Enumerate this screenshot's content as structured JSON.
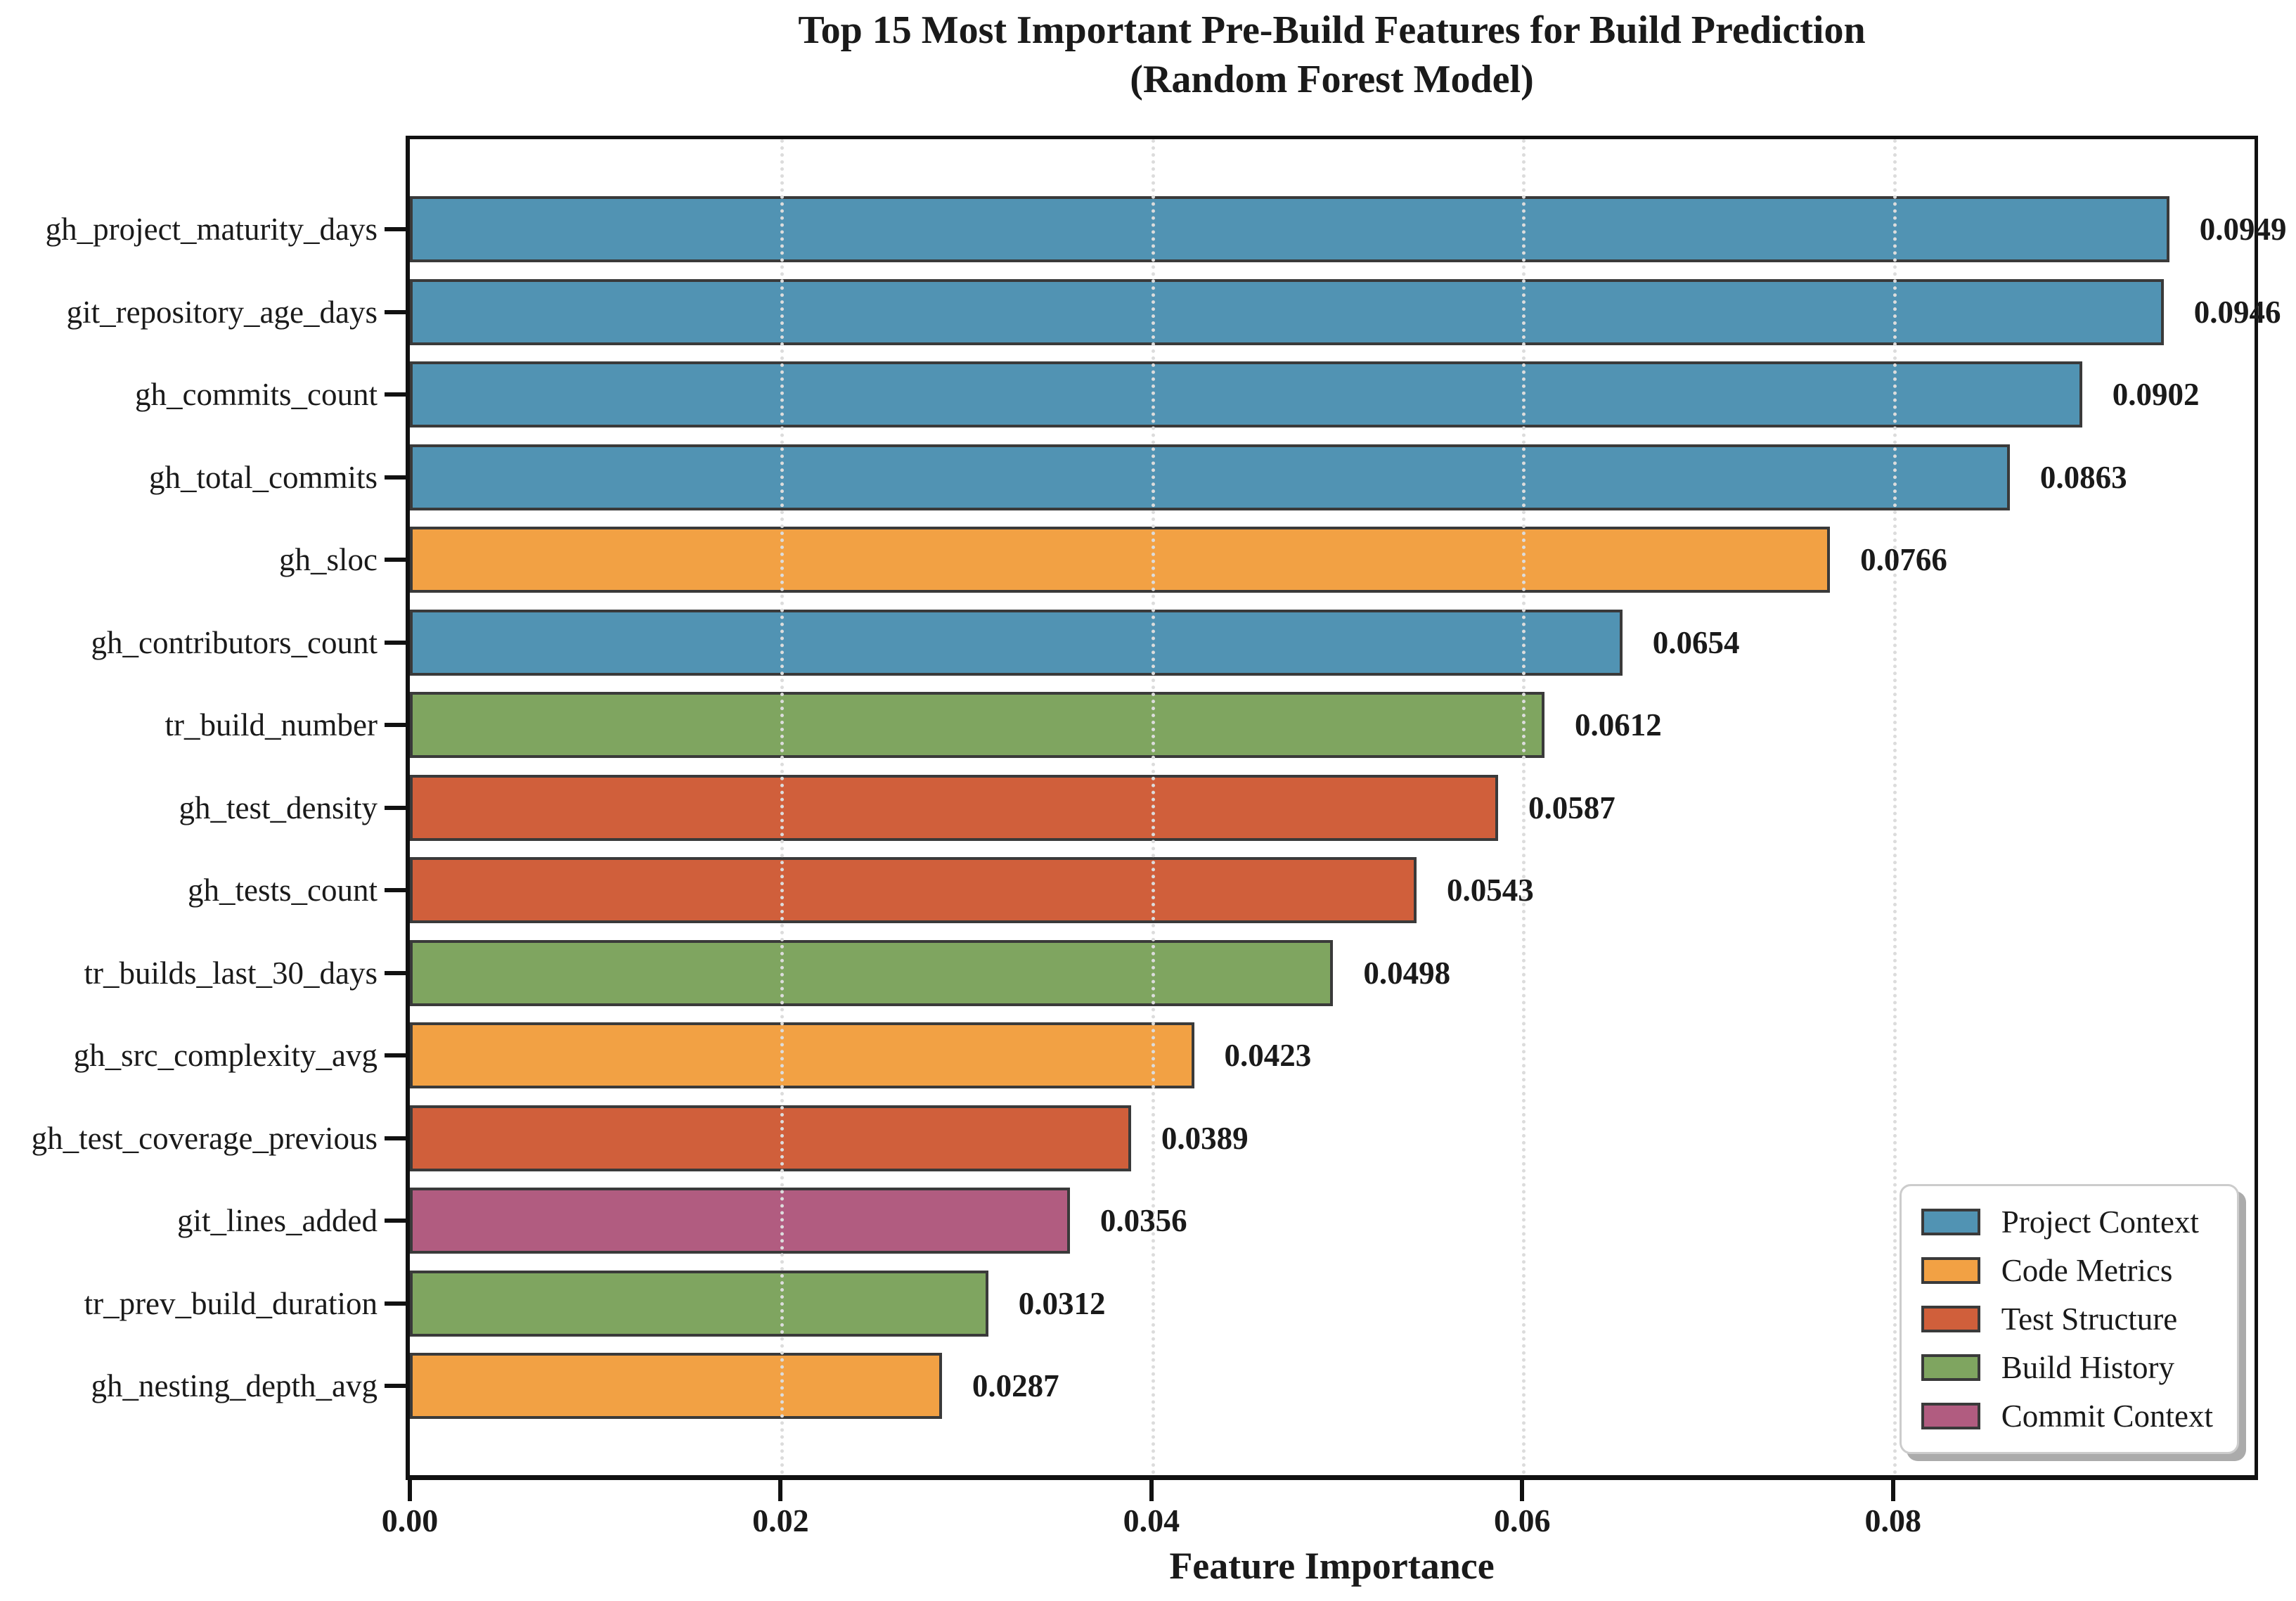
{
  "title": {
    "line1": "Top 15 Most Important Pre-Build Features for Build Prediction",
    "line2": "(Random Forest Model)"
  },
  "colors": {
    "project_context": "#5193B3",
    "code_metrics": "#F2A144",
    "test_structure": "#D05F3B",
    "build_history": "#7FA560",
    "commit_context": "#B15C80",
    "bar_edge": "#3A3A3A",
    "grid": "#DCDCDC"
  },
  "legend": {
    "entries": [
      {
        "label": "Project Context",
        "color": "#5193B3"
      },
      {
        "label": "Code Metrics",
        "color": "#F2A144"
      },
      {
        "label": "Test Structure",
        "color": "#D05F3B"
      },
      {
        "label": "Build History",
        "color": "#7FA560"
      },
      {
        "label": "Commit Context",
        "color": "#B15C80"
      }
    ],
    "position": "lower right"
  },
  "chart_data": {
    "type": "bar",
    "orientation": "horizontal",
    "title": "Top 15 Most Important Pre-Build Features for Build Prediction (Random Forest Model)",
    "xlabel": "Feature Importance",
    "ylabel": "",
    "xlim": [
      0,
      0.0995
    ],
    "xticks": [
      {
        "value": 0.0,
        "label": "0.00"
      },
      {
        "value": 0.02,
        "label": "0.02"
      },
      {
        "value": 0.04,
        "label": "0.04"
      },
      {
        "value": 0.06,
        "label": "0.06"
      },
      {
        "value": 0.08,
        "label": "0.08"
      }
    ],
    "grid": "vertical dotted at x ticks, drawn over bars",
    "bars": [
      {
        "feature": "gh_project_maturity_days",
        "importance": 0.0949,
        "value_label": "0.0949",
        "category": "Project Context"
      },
      {
        "feature": "git_repository_age_days",
        "importance": 0.0946,
        "value_label": "0.0946",
        "category": "Project Context"
      },
      {
        "feature": "gh_commits_count",
        "importance": 0.0902,
        "value_label": "0.0902",
        "category": "Project Context"
      },
      {
        "feature": "gh_total_commits",
        "importance": 0.0863,
        "value_label": "0.0863",
        "category": "Project Context"
      },
      {
        "feature": "gh_sloc",
        "importance": 0.0766,
        "value_label": "0.0766",
        "category": "Code Metrics"
      },
      {
        "feature": "gh_contributors_count",
        "importance": 0.0654,
        "value_label": "0.0654",
        "category": "Project Context"
      },
      {
        "feature": "tr_build_number",
        "importance": 0.0612,
        "value_label": "0.0612",
        "category": "Build History"
      },
      {
        "feature": "gh_test_density",
        "importance": 0.0587,
        "value_label": "0.0587",
        "category": "Test Structure"
      },
      {
        "feature": "gh_tests_count",
        "importance": 0.0543,
        "value_label": "0.0543",
        "category": "Test Structure"
      },
      {
        "feature": "tr_builds_last_30_days",
        "importance": 0.0498,
        "value_label": "0.0498",
        "category": "Build History"
      },
      {
        "feature": "gh_src_complexity_avg",
        "importance": 0.0423,
        "value_label": "0.0423",
        "category": "Code Metrics"
      },
      {
        "feature": "gh_test_coverage_previous",
        "importance": 0.0389,
        "value_label": "0.0389",
        "category": "Test Structure"
      },
      {
        "feature": "git_lines_added",
        "importance": 0.0356,
        "value_label": "0.0356",
        "category": "Commit Context"
      },
      {
        "feature": "tr_prev_build_duration",
        "importance": 0.0312,
        "value_label": "0.0312",
        "category": "Build History"
      },
      {
        "feature": "gh_nesting_depth_avg",
        "importance": 0.0287,
        "value_label": "0.0287",
        "category": "Code Metrics"
      }
    ]
  }
}
